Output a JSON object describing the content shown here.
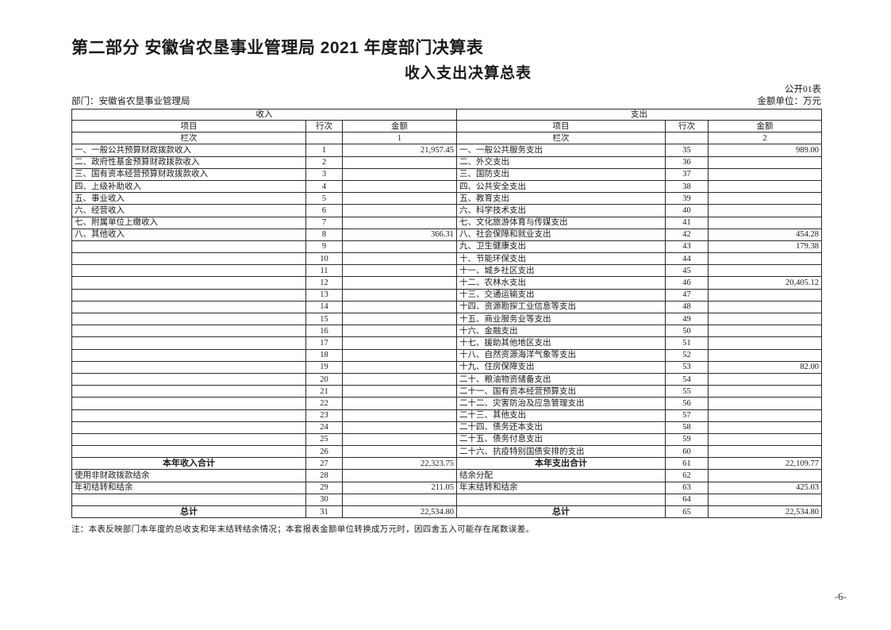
{
  "page": {
    "title": "第二部分 安徽省农垦事业管理局 2021 年度部门决算表",
    "subtitle": "收入支出决算总表",
    "table_code": "公开01表",
    "department_label": "部门：安徽省农垦事业管理局",
    "unit_label": "金额单位：万元",
    "note": "注：本表反映部门本年度的总收支和年末结转结余情况；本套报表金额单位转换成万元时，因四舍五入可能存在尾数误差。",
    "page_number": "-6-"
  },
  "table": {
    "income_header": "收入",
    "expense_header": "支出",
    "col_item": "项目",
    "col_line": "行次",
    "col_amount": "金额",
    "col_index_label": "栏次",
    "income_col_index": "1",
    "expense_col_index": "2",
    "rows": [
      {
        "l": [
          "一、一般公共预算财政拨款收入",
          "1",
          "21,957.45"
        ],
        "r": [
          "一、一般公共服务支出",
          "35",
          "989.00"
        ],
        "total": false
      },
      {
        "l": [
          "二、政府性基金预算财政拨款收入",
          "2",
          ""
        ],
        "r": [
          "二、外交支出",
          "36",
          ""
        ],
        "total": false
      },
      {
        "l": [
          "三、国有资本经营预算财政拨款收入",
          "3",
          ""
        ],
        "r": [
          "三、国防支出",
          "37",
          ""
        ],
        "total": false
      },
      {
        "l": [
          "四、上级补助收入",
          "4",
          ""
        ],
        "r": [
          "四、公共安全支出",
          "38",
          ""
        ],
        "total": false
      },
      {
        "l": [
          "五、事业收入",
          "5",
          ""
        ],
        "r": [
          "五、教育支出",
          "39",
          ""
        ],
        "total": false
      },
      {
        "l": [
          "六、经营收入",
          "6",
          ""
        ],
        "r": [
          "六、科学技术支出",
          "40",
          ""
        ],
        "total": false
      },
      {
        "l": [
          "七、附属单位上缴收入",
          "7",
          ""
        ],
        "r": [
          "七、文化旅游体育与传媒支出",
          "41",
          ""
        ],
        "total": false
      },
      {
        "l": [
          "八、其他收入",
          "8",
          "366.31"
        ],
        "r": [
          "八、社会保障和就业支出",
          "42",
          "454.28"
        ],
        "total": false
      },
      {
        "l": [
          "",
          "9",
          ""
        ],
        "r": [
          "九、卫生健康支出",
          "43",
          "179.38"
        ],
        "total": false
      },
      {
        "l": [
          "",
          "10",
          ""
        ],
        "r": [
          "十、节能环保支出",
          "44",
          ""
        ],
        "total": false
      },
      {
        "l": [
          "",
          "11",
          ""
        ],
        "r": [
          "十一、城乡社区支出",
          "45",
          ""
        ],
        "total": false
      },
      {
        "l": [
          "",
          "12",
          ""
        ],
        "r": [
          "十二、农林水支出",
          "46",
          "20,405.12"
        ],
        "total": false
      },
      {
        "l": [
          "",
          "13",
          ""
        ],
        "r": [
          "十三、交通运输支出",
          "47",
          ""
        ],
        "total": false
      },
      {
        "l": [
          "",
          "14",
          ""
        ],
        "r": [
          "十四、资源勘探工业信息等支出",
          "48",
          ""
        ],
        "total": false
      },
      {
        "l": [
          "",
          "15",
          ""
        ],
        "r": [
          "十五、商业服务业等支出",
          "49",
          ""
        ],
        "total": false
      },
      {
        "l": [
          "",
          "16",
          ""
        ],
        "r": [
          "十六、金融支出",
          "50",
          ""
        ],
        "total": false
      },
      {
        "l": [
          "",
          "17",
          ""
        ],
        "r": [
          "十七、援助其他地区支出",
          "51",
          ""
        ],
        "total": false
      },
      {
        "l": [
          "",
          "18",
          ""
        ],
        "r": [
          "十八、自然资源海洋气象等支出",
          "52",
          ""
        ],
        "total": false
      },
      {
        "l": [
          "",
          "19",
          ""
        ],
        "r": [
          "十九、住房保障支出",
          "53",
          "82.00"
        ],
        "total": false
      },
      {
        "l": [
          "",
          "20",
          ""
        ],
        "r": [
          "二十、粮油物资储备支出",
          "54",
          ""
        ],
        "total": false
      },
      {
        "l": [
          "",
          "21",
          ""
        ],
        "r": [
          "二十一、国有资本经营预算支出",
          "55",
          ""
        ],
        "total": false
      },
      {
        "l": [
          "",
          "22",
          ""
        ],
        "r": [
          "二十二、灾害防治及应急管理支出",
          "56",
          ""
        ],
        "total": false
      },
      {
        "l": [
          "",
          "23",
          ""
        ],
        "r": [
          "二十三、其他支出",
          "57",
          ""
        ],
        "total": false
      },
      {
        "l": [
          "",
          "24",
          ""
        ],
        "r": [
          "二十四、债务还本支出",
          "58",
          ""
        ],
        "total": false
      },
      {
        "l": [
          "",
          "25",
          ""
        ],
        "r": [
          "二十五、债务付息支出",
          "59",
          ""
        ],
        "total": false
      },
      {
        "l": [
          "",
          "26",
          ""
        ],
        "r": [
          "二十六、抗疫特别国债安排的支出",
          "60",
          ""
        ],
        "total": false
      },
      {
        "l": [
          "本年收入合计",
          "27",
          "22,323.75"
        ],
        "r": [
          "本年支出合计",
          "61",
          "22,109.77"
        ],
        "total": true
      },
      {
        "l": [
          "使用非财政拨款结余",
          "28",
          ""
        ],
        "r": [
          "结余分配",
          "62",
          ""
        ],
        "total": false
      },
      {
        "l": [
          "年初结转和结余",
          "29",
          "211.05"
        ],
        "r": [
          "年末结转和结余",
          "63",
          "425.03"
        ],
        "total": false
      },
      {
        "l": [
          "",
          "30",
          ""
        ],
        "r": [
          "",
          "64",
          ""
        ],
        "total": false
      },
      {
        "l": [
          "总计",
          "31",
          "22,534.80"
        ],
        "r": [
          "总计",
          "65",
          "22,534.80"
        ],
        "total": true
      }
    ]
  }
}
